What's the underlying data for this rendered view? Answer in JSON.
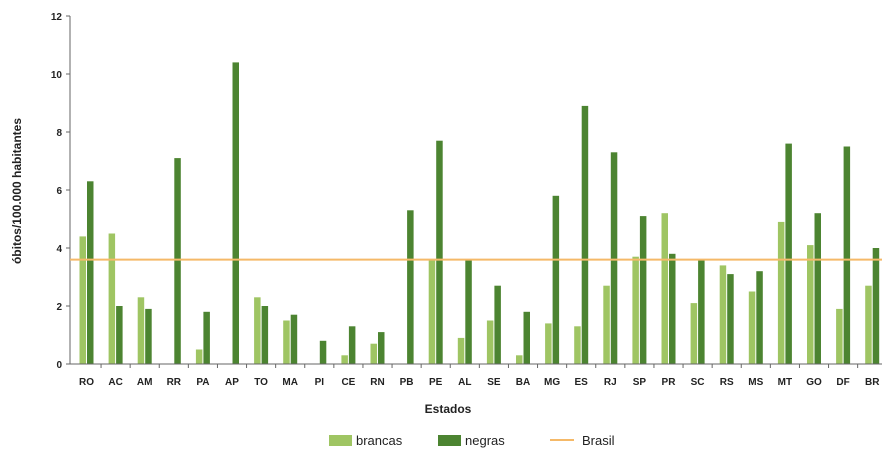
{
  "chart_data": {
    "type": "bar",
    "xlabel": "Estados",
    "ylabel": "óbitos/100.000 habitantes",
    "ylim": [
      0,
      12
    ],
    "yticks": [
      0,
      2,
      4,
      6,
      8,
      10,
      12
    ],
    "grid": false,
    "legend_position": "bottom",
    "categories": [
      "RO",
      "AC",
      "AM",
      "RR",
      "PA",
      "AP",
      "TO",
      "MA",
      "PI",
      "CE",
      "RN",
      "PB",
      "PE",
      "AL",
      "SE",
      "BA",
      "MG",
      "ES",
      "RJ",
      "SP",
      "PR",
      "SC",
      "RS",
      "MS",
      "MT",
      "GO",
      "DF",
      "BR"
    ],
    "series": [
      {
        "name": "brancas",
        "color": "#9fc563",
        "values": [
          4.4,
          4.5,
          2.3,
          0.0,
          0.5,
          0.0,
          2.3,
          1.5,
          0.0,
          0.3,
          0.7,
          0.0,
          3.6,
          0.9,
          1.5,
          0.3,
          1.4,
          1.3,
          2.7,
          3.7,
          5.2,
          2.1,
          3.4,
          2.5,
          4.9,
          4.1,
          1.9,
          2.7
        ]
      },
      {
        "name": "negras",
        "color": "#4c8431",
        "values": [
          6.3,
          2.0,
          1.9,
          7.1,
          1.8,
          10.4,
          2.0,
          1.7,
          0.8,
          1.3,
          1.1,
          5.3,
          7.7,
          3.6,
          2.7,
          1.8,
          5.8,
          8.9,
          7.3,
          5.1,
          3.8,
          3.6,
          3.1,
          3.2,
          7.6,
          5.2,
          7.5,
          4.0
        ]
      }
    ],
    "reference_line": {
      "name": "Brasil",
      "value": 3.6,
      "color": "#f5b968"
    }
  }
}
